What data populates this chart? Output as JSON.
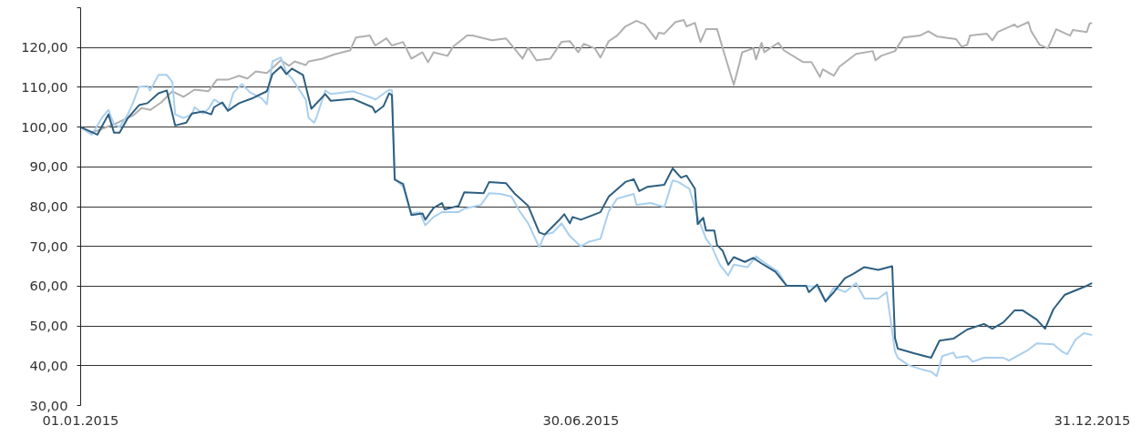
{
  "chart_data": {
    "type": "line",
    "xlim": [
      "2015-01-01",
      "2015-12-31"
    ],
    "ylim": [
      30,
      130
    ],
    "xticks": [
      {
        "value": "2015-01-01",
        "label": "01.01.2015"
      },
      {
        "value": "2015-06-30",
        "label": "30.06.2015"
      },
      {
        "value": "2015-12-31",
        "label": "31.12.2015"
      }
    ],
    "yticks": [
      {
        "value": 30,
        "label": "30,00"
      },
      {
        "value": 40,
        "label": "40,00"
      },
      {
        "value": 50,
        "label": "50,00"
      },
      {
        "value": 60,
        "label": "60,00"
      },
      {
        "value": 70,
        "label": "70,00"
      },
      {
        "value": 80,
        "label": "80,00"
      },
      {
        "value": 90,
        "label": "90,00"
      },
      {
        "value": 100,
        "label": "100,00"
      },
      {
        "value": 110,
        "label": "110,00"
      },
      {
        "value": 120,
        "label": "120,00"
      },
      {
        "value": 130,
        "label": null
      }
    ],
    "grid": "y",
    "marker": "none",
    "line_style": "solid",
    "series": [
      {
        "color": "#b0b0b0",
        "x": [
          "2015-01-01",
          "2015-01-04",
          "2015-01-07",
          "2015-01-13",
          "2015-01-20",
          "2015-01-23",
          "2015-01-26",
          "2015-01-30",
          "2015-02-03",
          "2015-02-07",
          "2015-02-11",
          "2015-02-16",
          "2015-02-19",
          "2015-02-23",
          "2015-02-27",
          "2015-03-02",
          "2015-03-05",
          "2015-03-09",
          "2015-03-14",
          "2015-03-17",
          "2015-03-19",
          "2015-03-23",
          "2015-03-24",
          "2015-03-29",
          "2015-04-02",
          "2015-04-08",
          "2015-04-10",
          "2015-04-15",
          "2015-04-17",
          "2015-04-21",
          "2015-04-23",
          "2015-04-27",
          "2015-04-30",
          "2015-05-04",
          "2015-05-06",
          "2015-05-08",
          "2015-05-13",
          "2015-05-15",
          "2015-05-20",
          "2015-05-22",
          "2015-05-29",
          "2015-06-03",
          "2015-06-06",
          "2015-06-09",
          "2015-06-11",
          "2015-06-14",
          "2015-06-19",
          "2015-06-23",
          "2015-06-26",
          "2015-06-29",
          "2015-07-01",
          "2015-07-05",
          "2015-07-07",
          "2015-07-10",
          "2015-07-13",
          "2015-07-16",
          "2015-07-20",
          "2015-07-23",
          "2015-07-27",
          "2015-07-28",
          "2015-07-30",
          "2015-08-03",
          "2015-08-06",
          "2015-08-07",
          "2015-08-10",
          "2015-08-12",
          "2015-08-14",
          "2015-08-18",
          "2015-08-20",
          "2015-08-24",
          "2015-08-26",
          "2015-08-27",
          "2015-08-31",
          "2015-09-01",
          "2015-09-03",
          "2015-09-04",
          "2015-09-09",
          "2015-09-11",
          "2015-09-18",
          "2015-09-21",
          "2015-09-24",
          "2015-09-25",
          "2015-09-29",
          "2015-10-01",
          "2015-10-07",
          "2015-10-13",
          "2015-10-14",
          "2015-10-16",
          "2015-10-21",
          "2015-10-24",
          "2015-10-30",
          "2015-11-02",
          "2015-11-05",
          "2015-11-12",
          "2015-11-14",
          "2015-11-16",
          "2015-11-17",
          "2015-11-23",
          "2015-11-25",
          "2015-11-27",
          "2015-12-03",
          "2015-12-04",
          "2015-12-08",
          "2015-12-09",
          "2015-12-12",
          "2015-12-15",
          "2015-12-18",
          "2015-12-23",
          "2015-12-24",
          "2015-12-29",
          "2015-12-30",
          "2015-12-31"
        ],
        "values": [
          100.0,
          98.6,
          99.1,
          100.7,
          103.0,
          104.8,
          104.3,
          106.2,
          109.0,
          107.6,
          109.4,
          109.0,
          111.9,
          111.9,
          112.9,
          112.2,
          114.0,
          113.6,
          116.8,
          115.4,
          116.5,
          115.6,
          116.5,
          117.2,
          118.2,
          119.3,
          122.5,
          123.0,
          120.5,
          122.3,
          120.5,
          121.4,
          117.2,
          118.8,
          116.3,
          118.8,
          117.9,
          120.2,
          123.0,
          123.0,
          121.8,
          122.3,
          119.8,
          117.2,
          120.0,
          116.8,
          117.2,
          121.4,
          121.6,
          118.8,
          120.9,
          119.8,
          117.5,
          121.6,
          123.0,
          125.3,
          126.7,
          125.8,
          122.1,
          123.7,
          123.5,
          126.4,
          126.9,
          125.3,
          126.2,
          121.4,
          124.6,
          124.6,
          119.8,
          110.6,
          115.9,
          118.8,
          119.8,
          117.0,
          121.2,
          118.8,
          121.2,
          119.3,
          116.3,
          116.3,
          112.6,
          114.5,
          112.9,
          115.2,
          118.4,
          119.1,
          116.8,
          117.9,
          119.1,
          122.5,
          123.0,
          124.1,
          122.8,
          122.1,
          120.2,
          120.7,
          123.0,
          123.5,
          121.8,
          123.9,
          125.8,
          125.1,
          126.4,
          124.1,
          120.7,
          119.8,
          124.6,
          123.0,
          124.4,
          123.9,
          126.0,
          126.2
        ]
      },
      {
        "color": "#a9cfee",
        "x": [
          "2015-01-01",
          "2015-01-05",
          "2015-01-09",
          "2015-01-11",
          "2015-01-13",
          "2015-01-15",
          "2015-01-18",
          "2015-01-20",
          "2015-01-22",
          "2015-01-25",
          "2015-01-26",
          "2015-01-29",
          "2015-02-01",
          "2015-02-03",
          "2015-02-04",
          "2015-02-07",
          "2015-02-10",
          "2015-02-11",
          "2015-02-14",
          "2015-02-16",
          "2015-02-18",
          "2015-02-21",
          "2015-02-23",
          "2015-02-25",
          "2015-02-28",
          "2015-03-03",
          "2015-03-07",
          "2015-03-09",
          "2015-03-11",
          "2015-03-14",
          "2015-03-16",
          "2015-03-18",
          "2015-03-23",
          "2015-03-24",
          "2015-03-26",
          "2015-03-27",
          "2015-03-30",
          "2015-04-01",
          "2015-04-09",
          "2015-04-12",
          "2015-04-16",
          "2015-04-17",
          "2015-04-22",
          "2015-04-23",
          "2015-04-24",
          "2015-04-27",
          "2015-04-30",
          "2015-05-03",
          "2015-05-05",
          "2015-05-08",
          "2015-05-11",
          "2015-05-17",
          "2015-05-19",
          "2015-05-25",
          "2015-05-28",
          "2015-06-01",
          "2015-06-05",
          "2015-06-08",
          "2015-06-11",
          "2015-06-15",
          "2015-06-17",
          "2015-06-20",
          "2015-06-23",
          "2015-06-26",
          "2015-06-30",
          "2015-07-03",
          "2015-07-07",
          "2015-07-10",
          "2015-07-13",
          "2015-07-19",
          "2015-07-20",
          "2015-07-25",
          "2015-07-30",
          "2015-08-02",
          "2015-08-04",
          "2015-08-08",
          "2015-08-11",
          "2015-08-14",
          "2015-08-16",
          "2015-08-19",
          "2015-08-22",
          "2015-08-24",
          "2015-08-29",
          "2015-09-01",
          "2015-09-04",
          "2015-09-09",
          "2015-09-12",
          "2015-09-23",
          "2015-09-26",
          "2015-09-29",
          "2015-10-03",
          "2015-10-07",
          "2015-10-10",
          "2015-10-15",
          "2015-10-18",
          "2015-10-21",
          "2015-10-22",
          "2015-10-26",
          "2015-10-31",
          "2015-11-03",
          "2015-11-05",
          "2015-11-07",
          "2015-11-11",
          "2015-11-12",
          "2015-11-16",
          "2015-11-18",
          "2015-11-22",
          "2015-11-29",
          "2015-12-01",
          "2015-12-08",
          "2015-12-11",
          "2015-12-17",
          "2015-12-20",
          "2015-12-22",
          "2015-12-25",
          "2015-12-28",
          "2015-12-31"
        ],
        "values": [
          100.0,
          98.1,
          102.7,
          104.3,
          100.7,
          100.0,
          103.2,
          106.4,
          110.1,
          110.3,
          109.2,
          113.1,
          113.1,
          111.3,
          103.2,
          102.3,
          103.2,
          105.0,
          103.4,
          104.6,
          106.9,
          105.7,
          104.1,
          108.7,
          110.8,
          108.7,
          107.3,
          105.7,
          116.5,
          117.5,
          113.8,
          112.2,
          106.9,
          102.3,
          101.1,
          102.7,
          109.2,
          108.3,
          109.0,
          108.3,
          107.3,
          106.9,
          109.4,
          109.2,
          87.1,
          85.0,
          78.3,
          78.6,
          75.3,
          77.4,
          78.6,
          78.6,
          79.5,
          80.4,
          83.4,
          83.2,
          82.5,
          78.8,
          75.8,
          69.8,
          73.0,
          73.5,
          75.8,
          72.6,
          70.0,
          71.2,
          71.9,
          78.8,
          82.0,
          83.2,
          80.4,
          80.9,
          79.9,
          86.6,
          86.2,
          84.5,
          77.4,
          71.9,
          70.0,
          65.4,
          62.7,
          65.4,
          64.8,
          67.5,
          65.9,
          63.6,
          60.1,
          59.9,
          56.0,
          59.7,
          58.5,
          60.8,
          56.9,
          56.9,
          58.5,
          43.6,
          42.0,
          40.1,
          39.0,
          38.5,
          37.4,
          42.4,
          43.3,
          42.0,
          42.4,
          41.0,
          42.0,
          42.0,
          41.3,
          44.0,
          45.6,
          45.4,
          43.6,
          42.9,
          46.6,
          48.2,
          47.7
        ]
      },
      {
        "color": "#2e5f80",
        "x": [
          "2015-01-01",
          "2015-01-07",
          "2015-01-11",
          "2015-01-13",
          "2015-01-15",
          "2015-01-18",
          "2015-01-22",
          "2015-01-25",
          "2015-01-29",
          "2015-02-01",
          "2015-02-04",
          "2015-02-08",
          "2015-02-10",
          "2015-02-14",
          "2015-02-17",
          "2015-02-18",
          "2015-02-21",
          "2015-02-23",
          "2015-02-27",
          "2015-03-04",
          "2015-03-09",
          "2015-03-11",
          "2015-03-14",
          "2015-03-16",
          "2015-03-18",
          "2015-03-22",
          "2015-03-25",
          "2015-03-30",
          "2015-04-01",
          "2015-04-09",
          "2015-04-16",
          "2015-04-17",
          "2015-04-20",
          "2015-04-22",
          "2015-04-23",
          "2015-04-24",
          "2015-04-27",
          "2015-04-30",
          "2015-05-04",
          "2015-05-05",
          "2015-05-08",
          "2015-05-11",
          "2015-05-12",
          "2015-05-17",
          "2015-05-19",
          "2015-05-26",
          "2015-05-28",
          "2015-06-03",
          "2015-06-06",
          "2015-06-11",
          "2015-06-15",
          "2015-06-17",
          "2015-06-22",
          "2015-06-24",
          "2015-06-26",
          "2015-06-27",
          "2015-06-30",
          "2015-07-07",
          "2015-07-10",
          "2015-07-16",
          "2015-07-19",
          "2015-07-21",
          "2015-07-24",
          "2015-07-30",
          "2015-08-02",
          "2015-08-05",
          "2015-08-07",
          "2015-08-10",
          "2015-08-11",
          "2015-08-13",
          "2015-08-14",
          "2015-08-17",
          "2015-08-18",
          "2015-08-20",
          "2015-08-22",
          "2015-08-24",
          "2015-08-28",
          "2015-08-31",
          "2015-09-03",
          "2015-09-08",
          "2015-09-12",
          "2015-09-19",
          "2015-09-20",
          "2015-09-23",
          "2015-09-26",
          "2015-09-29",
          "2015-10-03",
          "2015-10-06",
          "2015-10-10",
          "2015-10-15",
          "2015-10-20",
          "2015-10-21",
          "2015-10-22",
          "2015-10-28",
          "2015-11-03",
          "2015-11-06",
          "2015-11-11",
          "2015-11-16",
          "2015-11-22",
          "2015-11-25",
          "2015-11-29",
          "2015-12-03",
          "2015-12-06",
          "2015-12-11",
          "2015-12-14",
          "2015-12-17",
          "2015-12-21",
          "2015-12-29",
          "2015-12-31"
        ],
        "values": [
          100.0,
          98.1,
          103.2,
          98.6,
          98.6,
          102.3,
          105.5,
          106.0,
          108.5,
          109.2,
          100.4,
          101.1,
          103.4,
          103.9,
          103.2,
          105.0,
          106.2,
          104.1,
          106.0,
          107.3,
          109.0,
          113.3,
          115.2,
          113.3,
          114.7,
          113.1,
          104.6,
          108.3,
          106.6,
          107.1,
          105.0,
          103.7,
          105.3,
          108.5,
          108.0,
          86.8,
          85.7,
          77.9,
          78.3,
          76.7,
          79.7,
          80.9,
          79.3,
          80.2,
          83.6,
          83.4,
          86.2,
          85.9,
          83.4,
          80.2,
          73.5,
          73.0,
          76.5,
          78.1,
          75.8,
          77.4,
          76.7,
          78.6,
          82.5,
          86.2,
          86.9,
          83.9,
          85.0,
          85.5,
          89.6,
          87.3,
          87.8,
          84.5,
          75.6,
          77.2,
          74.0,
          74.0,
          70.3,
          68.9,
          65.4,
          67.3,
          66.1,
          67.1,
          65.7,
          63.6,
          60.1,
          60.1,
          58.5,
          60.4,
          56.2,
          58.5,
          62.0,
          63.1,
          64.8,
          64.1,
          65.0,
          47.0,
          44.3,
          43.1,
          42.0,
          46.3,
          46.8,
          49.1,
          50.5,
          49.3,
          50.9,
          53.9,
          53.9,
          51.6,
          49.3,
          54.2,
          57.8,
          60.1,
          60.8
        ]
      }
    ]
  }
}
